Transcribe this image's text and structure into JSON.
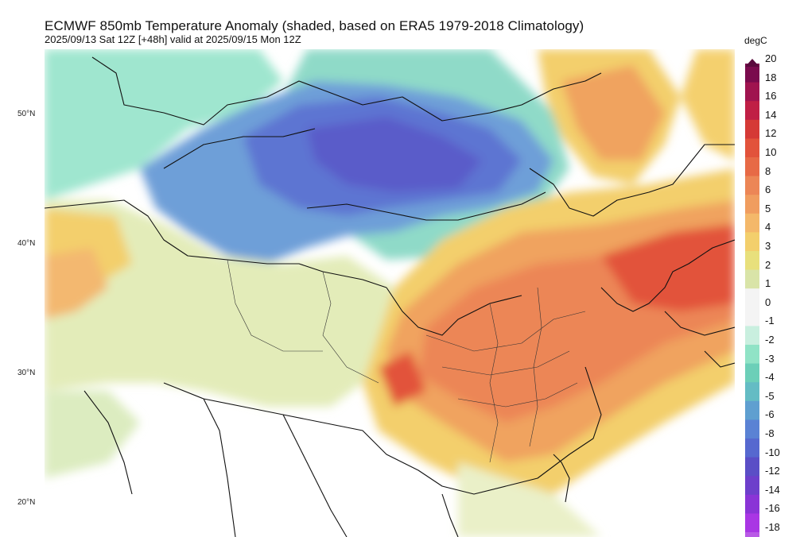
{
  "header": {
    "title": "ECMWF 850mb Temperature Anomaly (shaded, based on ERA5 1979-2018 Climatology)",
    "subtitle": "2025/09/13 Sat 12Z [+48h] valid at 2025/09/15 Mon 12Z"
  },
  "map": {
    "latitude_labels": [
      "50°N",
      "40°N",
      "30°N",
      "20°N"
    ]
  },
  "legend": {
    "unit": "degC",
    "levels": [
      "20",
      "18",
      "16",
      "14",
      "12",
      "10",
      "8",
      "6",
      "5",
      "4",
      "3",
      "2",
      "1",
      "0",
      "-1",
      "-2",
      "-3",
      "-4",
      "-5",
      "-6",
      "-8",
      "-10",
      "-12",
      "-14",
      "-16",
      "-18"
    ],
    "colors": [
      "#7a0b4d",
      "#a0144f",
      "#c01f45",
      "#d53a36",
      "#e2533b",
      "#e76a46",
      "#ec8656",
      "#f09d5f",
      "#f4b86a",
      "#f3cf6c",
      "#e8e07c",
      "#d9e4a8",
      "#f4f4f4",
      "#f4f4f4",
      "#c9efdf",
      "#90e3c6",
      "#6ccfb8",
      "#64bcc4",
      "#5f9fd0",
      "#5a82d4",
      "#5668cf",
      "#5a4ec6",
      "#6d3fcb",
      "#8a34d6",
      "#a936e4",
      "#b95ae6"
    ]
  }
}
